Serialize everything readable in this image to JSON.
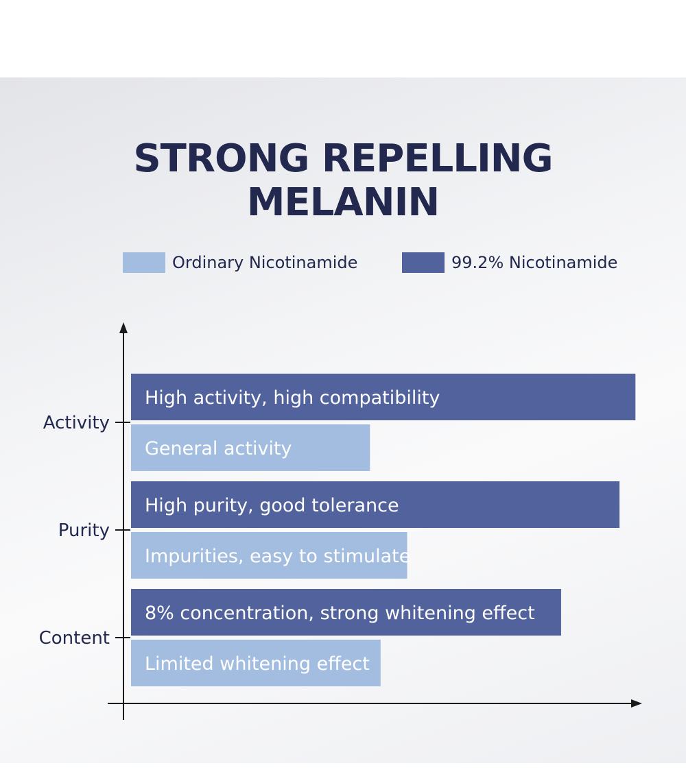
{
  "chart_data": {
    "type": "bar",
    "orientation": "horizontal",
    "title": [
      "STRONG REPELLING",
      "MELANIN"
    ],
    "categories": [
      "Activity",
      "Purity",
      "Content"
    ],
    "series": [
      {
        "name": "99.2% Nicotinamide",
        "color": "#51629c",
        "values": [
          0.95,
          0.92,
          0.81
        ],
        "labels": [
          "High activity, high compatibility",
          "High purity, good tolerance",
          "8% concentration, strong whitening effect"
        ]
      },
      {
        "name": "Ordinary Nicotinamide",
        "color": "#a2bddf",
        "values": [
          0.45,
          0.52,
          0.47
        ],
        "labels": [
          "General activity",
          "Impurities, easy to stimulate",
          "Limited whitening effect"
        ]
      }
    ],
    "legend_order": [
      "Ordinary Nicotinamide",
      "99.2% Nicotinamide"
    ],
    "legend_position": "top",
    "xlim": [
      0,
      1
    ],
    "grid": false
  },
  "colors": {
    "title": "#23284f",
    "axis": "#1a1a1a"
  }
}
